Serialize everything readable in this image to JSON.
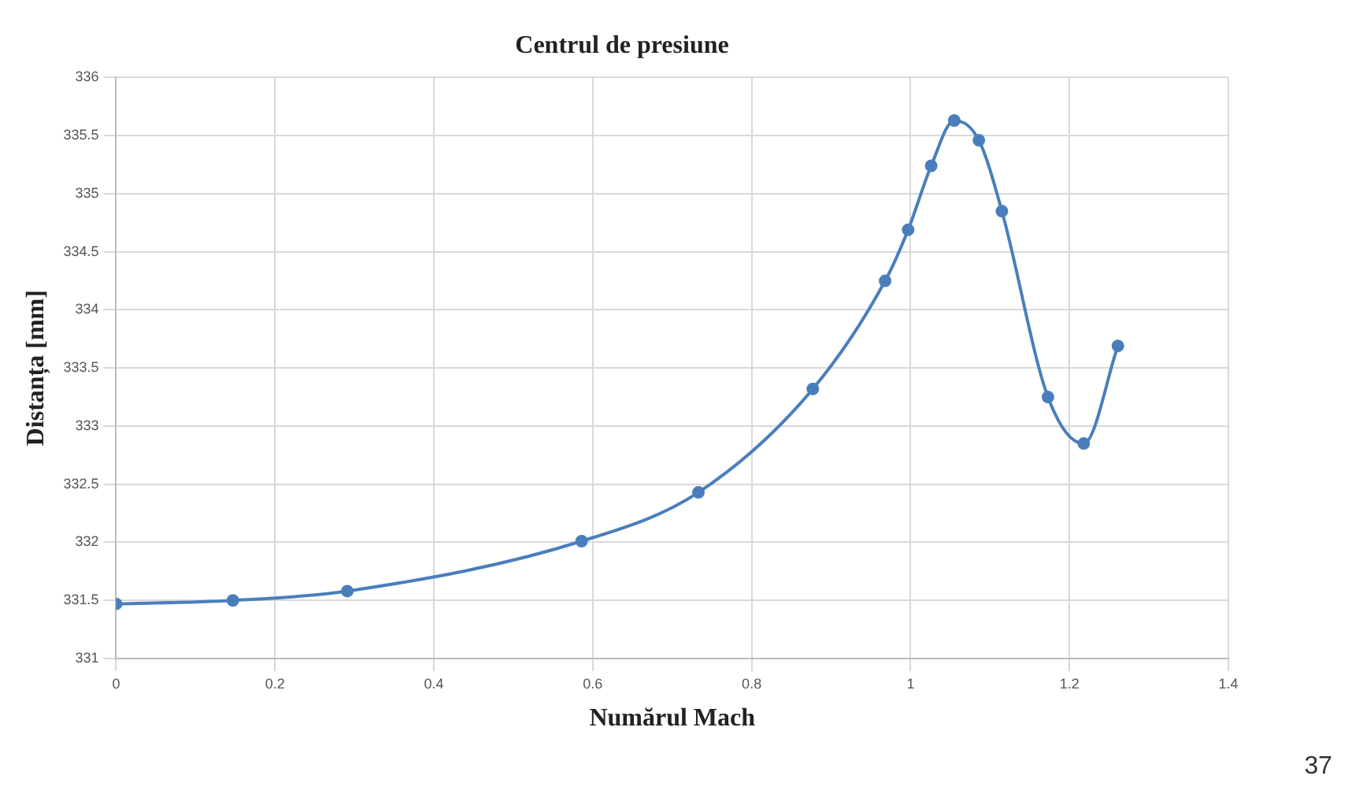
{
  "chart_data": {
    "type": "line",
    "title": "Centrul de presiune",
    "xlabel": "Numărul Mach",
    "ylabel": "Distanța [mm]",
    "x": [
      0,
      0.147,
      0.291,
      0.586,
      0.733,
      0.877,
      0.968,
      0.997,
      1.026,
      1.055,
      1.086,
      1.115,
      1.173,
      1.218,
      1.261
    ],
    "series": [
      {
        "color": "#4a7ebb",
        "values": [
          331.47,
          331.5,
          331.58,
          332.01,
          332.43,
          333.32,
          334.25,
          334.69,
          335.24,
          335.63,
          335.46,
          334.85,
          333.25,
          332.85,
          333.69
        ]
      }
    ],
    "xlim": [
      0,
      1.4
    ],
    "xticks": [
      0,
      0.2,
      0.4,
      0.6,
      0.8,
      1,
      1.2,
      1.4
    ],
    "ylim": [
      331,
      336
    ],
    "yticks": [
      331,
      331.5,
      332,
      332.5,
      333,
      333.5,
      334,
      334.5,
      335,
      335.5,
      336
    ],
    "grid": true,
    "marker": "circle",
    "line_style": "solid",
    "annotations": [
      "37"
    ]
  }
}
